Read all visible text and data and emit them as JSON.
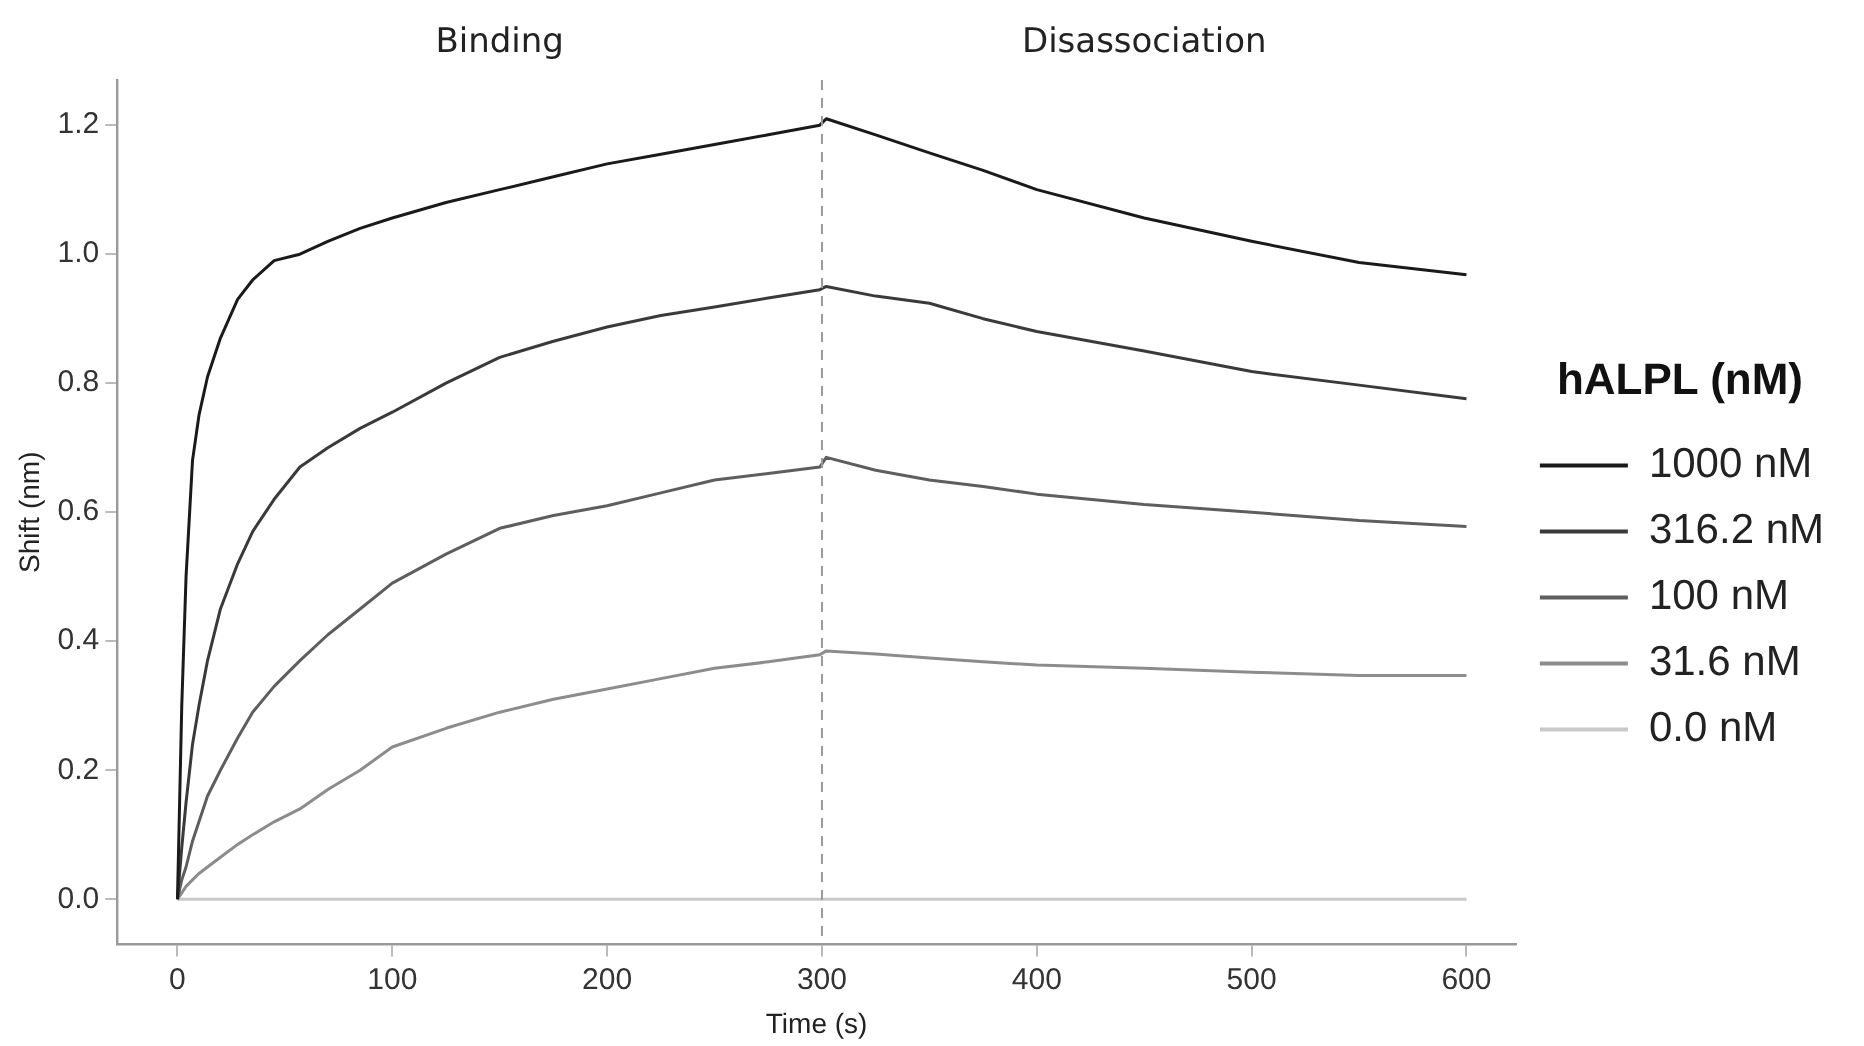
{
  "chart_data": {
    "type": "line",
    "xlabel": "Time (s)",
    "ylabel": "Shift (nm)",
    "legend_title": "hALPL (nM)",
    "legend": "right",
    "annotations": [
      "Binding",
      "Disassociation"
    ],
    "x": [
      0,
      2,
      4,
      7,
      10,
      14,
      20,
      28,
      35,
      45,
      57,
      70,
      85,
      100,
      125,
      150,
      175,
      200,
      225,
      250,
      275,
      299,
      302,
      325,
      350,
      375,
      400,
      450,
      500,
      550,
      600
    ],
    "series": [
      {
        "name": "1000 nM",
        "color": "#1a1a1a",
        "values": [
          0,
          0.3,
          0.5,
          0.68,
          0.75,
          0.81,
          0.87,
          0.93,
          0.96,
          0.99,
          1.0,
          1.02,
          1.04,
          1.056,
          1.08,
          1.1,
          1.12,
          1.14,
          1.155,
          1.17,
          1.185,
          1.2,
          1.21,
          1.185,
          1.157,
          1.13,
          1.1,
          1.056,
          1.02,
          0.987,
          0.968
        ]
      },
      {
        "name": "316.2 nM",
        "color": "#3a3a3a",
        "values": [
          0,
          0.08,
          0.15,
          0.24,
          0.3,
          0.37,
          0.45,
          0.52,
          0.57,
          0.62,
          0.67,
          0.7,
          0.73,
          0.755,
          0.8,
          0.84,
          0.865,
          0.887,
          0.905,
          0.918,
          0.932,
          0.945,
          0.95,
          0.935,
          0.924,
          0.9,
          0.88,
          0.85,
          0.818,
          0.797,
          0.776
        ]
      },
      {
        "name": "100 nM",
        "color": "#5e5e5e",
        "values": [
          0,
          0.03,
          0.05,
          0.09,
          0.12,
          0.16,
          0.2,
          0.25,
          0.29,
          0.33,
          0.37,
          0.41,
          0.45,
          0.49,
          0.535,
          0.575,
          0.595,
          0.61,
          0.63,
          0.65,
          0.66,
          0.67,
          0.685,
          0.665,
          0.65,
          0.64,
          0.628,
          0.612,
          0.6,
          0.587,
          0.578
        ]
      },
      {
        "name": "31.6 nM",
        "color": "#8c8c8c",
        "values": [
          0,
          0.01,
          0.02,
          0.03,
          0.04,
          0.05,
          0.065,
          0.085,
          0.1,
          0.12,
          0.14,
          0.17,
          0.2,
          0.236,
          0.265,
          0.29,
          0.31,
          0.326,
          0.342,
          0.358,
          0.368,
          0.379,
          0.385,
          0.38,
          0.374,
          0.368,
          0.363,
          0.358,
          0.352,
          0.347,
          0.347
        ]
      },
      {
        "name": "0.0 nM",
        "color": "#c8c8c8",
        "values": [
          0,
          0,
          0,
          0,
          0,
          0,
          0,
          0,
          0,
          0,
          0,
          0,
          0,
          0,
          0,
          0,
          0,
          0,
          0,
          0,
          0,
          0,
          0,
          0,
          0,
          0,
          0,
          0,
          0,
          0,
          0
        ]
      }
    ],
    "xlim": [
      -28,
      623
    ],
    "xticks": [
      0,
      100,
      200,
      300,
      400,
      500,
      600
    ],
    "ylim": [
      -0.07,
      1.27
    ],
    "yticks": [
      {
        "value": 0,
        "label": "0.0"
      },
      {
        "value": 0.2,
        "label": "0.2"
      },
      {
        "value": 0.4,
        "label": "0.4"
      },
      {
        "value": 0.6,
        "label": "0.6"
      },
      {
        "value": 0.8,
        "label": "0.8"
      },
      {
        "value": 1,
        "label": "1.0"
      },
      {
        "value": 1.2,
        "label": "1.2"
      }
    ],
    "ref_lines": [
      {
        "axis": "x",
        "value": 300,
        "color": "#9a9a9a",
        "line_style": "dashed"
      }
    ],
    "grid": false,
    "marker": "none",
    "line_style": "solid"
  }
}
